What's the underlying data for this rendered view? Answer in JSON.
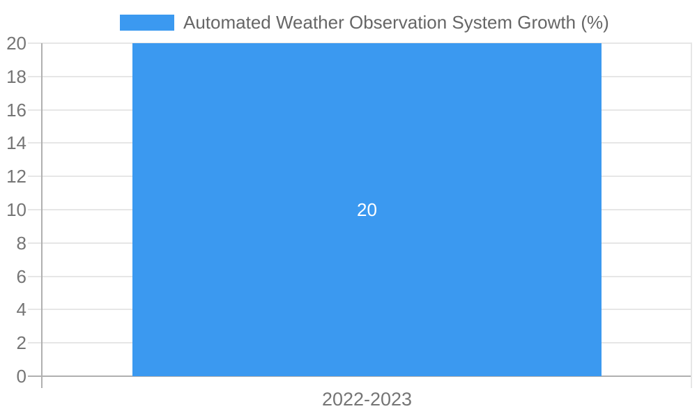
{
  "chart_data": {
    "type": "bar",
    "title": "Automated Weather Observation System Growth (%)",
    "categories": [
      "2022-2023"
    ],
    "values": [
      20
    ],
    "value_labels": [
      "20"
    ],
    "xlabel": "",
    "ylabel": "",
    "ylim": [
      0,
      20
    ],
    "yticks": [
      0,
      2,
      4,
      6,
      8,
      10,
      12,
      14,
      16,
      18,
      20
    ],
    "grid": true,
    "legend_position": "top",
    "colors": {
      "bar": "#3B99F0",
      "gridline": "#e6e6e6",
      "axis": "#b0b0b0",
      "tick_label": "#757575",
      "legend_text": "#666666",
      "value_label": "#ffffff",
      "background": "#ffffff"
    }
  }
}
